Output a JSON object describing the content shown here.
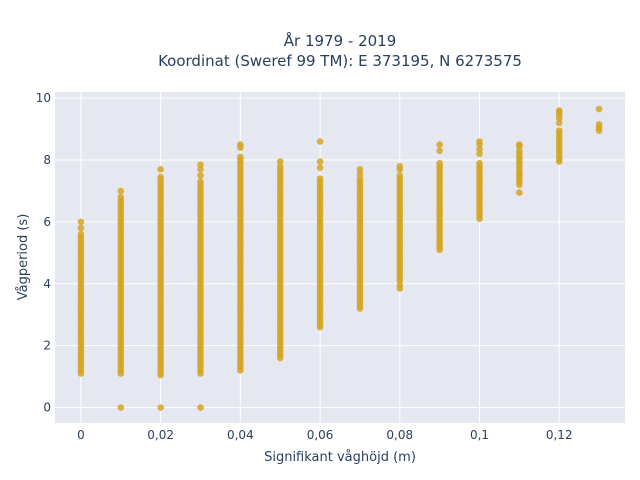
{
  "chart_data": {
    "type": "scatter",
    "title": "År 1979 - 2019",
    "subtitle": "Koordinat (Sweref 99 TM): E 373195, N 6273575",
    "xlabel": "Signifikant våghöjd (m)",
    "ylabel": "Vågperiod (s)",
    "xlim": [
      -0.0065,
      0.1365
    ],
    "ylim": [
      -0.5,
      10.2
    ],
    "x_ticks": [
      {
        "value": 0,
        "label": "0"
      },
      {
        "value": 0.02,
        "label": "0,02"
      },
      {
        "value": 0.04,
        "label": "0,04"
      },
      {
        "value": 0.06,
        "label": "0,06"
      },
      {
        "value": 0.08,
        "label": "0,08"
      },
      {
        "value": 0.1,
        "label": "0,1"
      },
      {
        "value": 0.12,
        "label": "0,12"
      }
    ],
    "y_ticks": [
      {
        "value": 0,
        "label": "0"
      },
      {
        "value": 2,
        "label": "2"
      },
      {
        "value": 4,
        "label": "4"
      },
      {
        "value": 6,
        "label": "6"
      },
      {
        "value": 8,
        "label": "8"
      },
      {
        "value": 10,
        "label": "10"
      }
    ],
    "grid": true,
    "marker_color": "#d4a520",
    "plot_bg": "#e5e8f0",
    "grid_color": "#ffffff",
    "columns": [
      {
        "x": 0,
        "segments": [
          [
            1.1,
            5.6
          ]
        ],
        "extra": [
          5.8,
          6.0
        ]
      },
      {
        "x": 0.01,
        "segments": [
          [
            1.1,
            6.8
          ]
        ],
        "extra": [
          0,
          7.0
        ]
      },
      {
        "x": 0.02,
        "segments": [
          [
            1.05,
            7.5
          ]
        ],
        "extra": [
          0,
          7.7
        ]
      },
      {
        "x": 0.03,
        "segments": [
          [
            1.1,
            7.3
          ]
        ],
        "extra": [
          0,
          7.5,
          7.7,
          7.85
        ]
      },
      {
        "x": 0.04,
        "segments": [
          [
            1.2,
            8.0
          ]
        ],
        "extra": [
          8.1,
          8.4,
          8.5
        ]
      },
      {
        "x": 0.05,
        "segments": [
          [
            1.6,
            7.8
          ]
        ],
        "extra": [
          7.95
        ]
      },
      {
        "x": 0.06,
        "segments": [
          [
            2.6,
            7.4
          ]
        ],
        "extra": [
          7.75,
          7.95,
          8.6
        ]
      },
      {
        "x": 0.07,
        "segments": [
          [
            3.2,
            7.4
          ]
        ],
        "extra": [
          7.55,
          7.7
        ]
      },
      {
        "x": 0.08,
        "segments": [
          [
            4.1,
            7.5
          ]
        ],
        "extra": [
          3.85,
          3.95,
          7.7,
          7.8
        ]
      },
      {
        "x": 0.09,
        "segments": [
          [
            5.1,
            7.9
          ]
        ],
        "extra": [
          8.3,
          8.5
        ]
      },
      {
        "x": 0.1,
        "segments": [
          [
            6.1,
            7.9
          ]
        ],
        "extra": [
          8.2,
          8.35,
          8.5,
          8.6
        ]
      },
      {
        "x": 0.11,
        "segments": [
          [
            7.2,
            8.2
          ]
        ],
        "extra": [
          6.95,
          7.5,
          8.3,
          8.45,
          8.5
        ]
      },
      {
        "x": 0.12,
        "segments": [
          [
            7.95,
            9.0
          ]
        ],
        "extra": [
          9.2,
          9.35,
          9.45,
          9.55,
          9.6
        ]
      },
      {
        "x": 0.13,
        "segments": [
          [
            8.95,
            9.15
          ]
        ],
        "extra": [
          9.65
        ]
      }
    ]
  }
}
